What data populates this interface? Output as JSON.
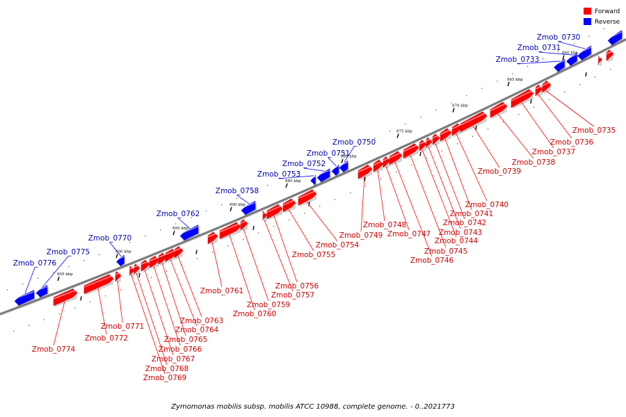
{
  "caption": "Zymomonas mobilis subsp. mobilis ATCC 10988, complete genome. - 0..2021773",
  "legend": [
    {
      "label": "Forward",
      "color": "#ff0000"
    },
    {
      "label": "Reverse",
      "color": "#0000ff"
    }
  ],
  "colors": {
    "forward": "#ff0000",
    "reverse": "#0000ff",
    "forward_label": "#cc0000",
    "reverse_label": "#0000aa",
    "backbone": "#7a7a7a"
  },
  "ticks": [
    "860 kbp",
    "865 kbp",
    "870 kbp",
    "875 kbp",
    "880 kbp",
    "885 kbp",
    "890 kbp",
    "895 kbp",
    "900 kbp",
    "905 kbp"
  ],
  "reverse_genes": [
    "Zmob_0730",
    "Zmob_0731",
    "Zmob_0733",
    "Zmob_0750",
    "Zmob_0751",
    "Zmob_0752",
    "Zmob_0753",
    "Zmob_0758",
    "Zmob_0762",
    "Zmob_0770",
    "Zmob_0775",
    "Zmob_0776"
  ],
  "forward_genes": [
    "Zmob_0735",
    "Zmob_0736",
    "Zmob_0737",
    "Zmob_0738",
    "Zmob_0739",
    "Zmob_0740",
    "Zmob_0741",
    "Zmob_0742",
    "Zmob_0743",
    "Zmob_0744",
    "Zmob_0745",
    "Zmob_0746",
    "Zmob_0747",
    "Zmob_0748",
    "Zmob_0749",
    "Zmob_0754",
    "Zmob_0755",
    "Zmob_0756",
    "Zmob_0757",
    "Zmob_0759",
    "Zmob_0760",
    "Zmob_0761",
    "Zmob_0763",
    "Zmob_0764",
    "Zmob_0765",
    "Zmob_0766",
    "Zmob_0767",
    "Zmob_0768",
    "Zmob_0769",
    "Zmob_0771",
    "Zmob_0772",
    "Zmob_0774"
  ]
}
